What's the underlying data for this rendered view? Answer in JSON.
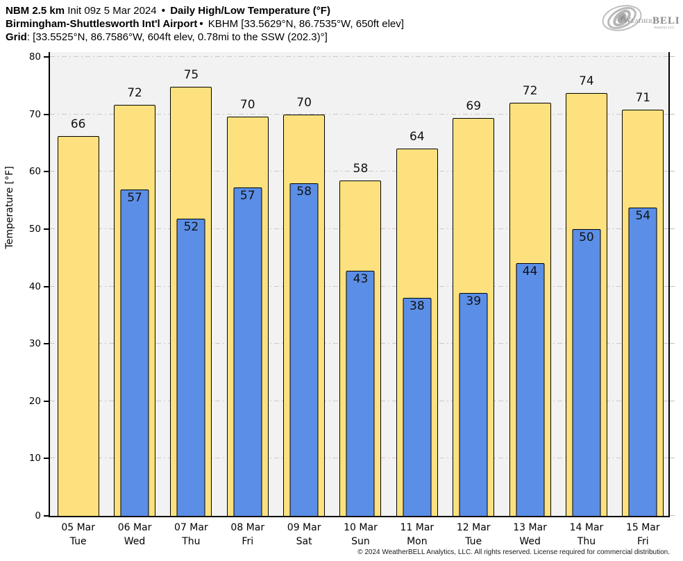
{
  "header": {
    "line1": {
      "model": "NBM 2.5 km",
      "init": " Init 09z 5 Mar 2024 ",
      "sep": "•",
      "product": " Daily High/Low Temperature (°F)"
    },
    "line2": {
      "station_name": "Birmingham-Shuttlesworth Int'l Airport",
      "sep": "•",
      "station_meta": " KBHM [33.5629°N, 86.7535°W, 650ft elev]"
    },
    "line3": {
      "label": "Grid",
      "value": ": [33.5525°N, 86.7586°W, 604ft elev, 0.78mi to the SSW (202.3)°]"
    }
  },
  "logo": {
    "brand_weather": "Weather",
    "brand_bell": "BELL",
    "subtitle": "Analytics LLC"
  },
  "chart_data": {
    "type": "bar",
    "title": "NBM 2.5 km Daily High/Low Temperature (°F) — Birmingham-Shuttlesworth Int'l Airport (KBHM)",
    "ylabel": "Temperature [°F]",
    "ylim": [
      0,
      80
    ],
    "yticks": [
      0,
      10,
      20,
      30,
      40,
      50,
      60,
      70,
      80
    ],
    "grid": true,
    "legend_position": "none",
    "categories": [
      {
        "date": "05 Mar",
        "day": "Tue"
      },
      {
        "date": "06 Mar",
        "day": "Wed"
      },
      {
        "date": "07 Mar",
        "day": "Thu"
      },
      {
        "date": "08 Mar",
        "day": "Fri"
      },
      {
        "date": "09 Mar",
        "day": "Sat"
      },
      {
        "date": "10 Mar",
        "day": "Sun"
      },
      {
        "date": "11 Mar",
        "day": "Mon"
      },
      {
        "date": "12 Mar",
        "day": "Tue"
      },
      {
        "date": "13 Mar",
        "day": "Wed"
      },
      {
        "date": "14 Mar",
        "day": "Thu"
      },
      {
        "date": "15 Mar",
        "day": "Fri"
      }
    ],
    "series": [
      {
        "name": "Daily High",
        "color": "#fce17e",
        "labels": [
          66,
          72,
          75,
          70,
          70,
          58,
          64,
          69,
          72,
          74,
          71
        ],
        "values": [
          66.2,
          71.6,
          74.8,
          69.6,
          70.0,
          58.4,
          64.0,
          69.4,
          72.0,
          73.7,
          70.8
        ]
      },
      {
        "name": "Daily Low",
        "color": "#5b8ee6",
        "labels": [
          null,
          57,
          52,
          57,
          58,
          43,
          38,
          39,
          44,
          50,
          54
        ],
        "values": [
          null,
          56.9,
          51.8,
          57.2,
          58.0,
          42.7,
          38.0,
          38.9,
          44.0,
          50.0,
          53.7
        ]
      }
    ]
  },
  "footer": {
    "copyright": "© 2024 WeatherBELL Analytics, LLC. All rights reserved. License required for commercial distribution."
  }
}
